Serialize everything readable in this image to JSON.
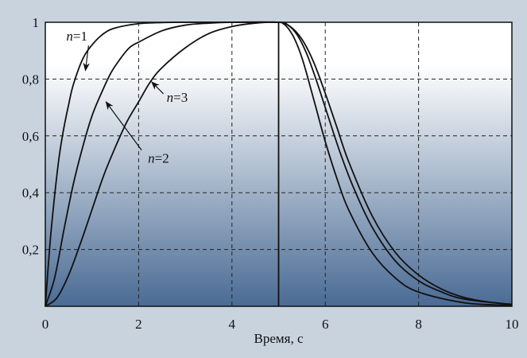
{
  "chart_data": {
    "type": "line",
    "title": "",
    "xlabel": "Время, с",
    "ylabel": "",
    "xlim": [
      0,
      10
    ],
    "ylim": [
      0,
      1
    ],
    "x_ticks": [
      {
        "value": 0,
        "label": "0"
      },
      {
        "value": 2,
        "label": "2"
      },
      {
        "value": 4,
        "label": "4"
      },
      {
        "value": 6,
        "label": "6"
      },
      {
        "value": 8,
        "label": "8"
      },
      {
        "value": 10,
        "label": "10"
      }
    ],
    "y_ticks": [
      {
        "value": 0.2,
        "label": "0,2"
      },
      {
        "value": 0.4,
        "label": "0,4"
      },
      {
        "value": 0.6,
        "label": "0,6"
      },
      {
        "value": 0.8,
        "label": "0,8"
      },
      {
        "value": 1.0,
        "label": "1"
      }
    ],
    "grid": true,
    "vertical_line_x": 5,
    "series": [
      {
        "name": "n=1",
        "x": [
          0,
          0.1,
          0.2,
          0.3,
          0.4,
          0.5,
          0.6,
          0.8,
          1.0,
          1.25,
          1.5,
          2.0,
          2.5,
          3.0,
          4.0,
          5.0,
          5.1,
          5.2,
          5.3,
          5.4,
          5.5,
          5.6,
          5.8,
          6.0,
          6.25,
          6.5,
          7.0,
          7.5,
          8.0,
          9.0,
          10.0
        ],
        "values": [
          0,
          0.22,
          0.39,
          0.53,
          0.63,
          0.71,
          0.78,
          0.87,
          0.92,
          0.96,
          0.98,
          0.995,
          0.999,
          1.0,
          1.0,
          1.0,
          0.995,
          0.98,
          0.955,
          0.92,
          0.875,
          0.82,
          0.7,
          0.58,
          0.45,
          0.34,
          0.19,
          0.1,
          0.05,
          0.012,
          0.003
        ]
      },
      {
        "name": "n=2",
        "x": [
          0,
          0.2,
          0.4,
          0.6,
          0.8,
          1.0,
          1.2,
          1.4,
          1.6,
          1.8,
          2.0,
          2.5,
          3.0,
          3.5,
          4.0,
          5.0,
          5.2,
          5.4,
          5.6,
          5.8,
          6.0,
          6.3,
          6.6,
          7.0,
          7.5,
          8.0,
          8.5,
          9.0,
          10.0
        ],
        "values": [
          0,
          0.1,
          0.27,
          0.43,
          0.56,
          0.67,
          0.75,
          0.82,
          0.87,
          0.91,
          0.93,
          0.97,
          0.99,
          0.997,
          1.0,
          1.0,
          0.99,
          0.955,
          0.89,
          0.8,
          0.7,
          0.55,
          0.42,
          0.28,
          0.16,
          0.09,
          0.05,
          0.025,
          0.006
        ]
      },
      {
        "name": "n=3",
        "x": [
          0,
          0.25,
          0.5,
          0.75,
          1.0,
          1.25,
          1.5,
          1.75,
          2.0,
          2.25,
          2.5,
          3.0,
          3.5,
          4.0,
          4.5,
          5.0,
          5.25,
          5.5,
          5.75,
          6.0,
          6.25,
          6.5,
          7.0,
          7.5,
          8.0,
          8.5,
          9.0,
          9.5,
          10.0
        ],
        "values": [
          0,
          0.03,
          0.11,
          0.22,
          0.34,
          0.46,
          0.56,
          0.65,
          0.72,
          0.79,
          0.84,
          0.91,
          0.96,
          0.985,
          0.997,
          1.0,
          0.985,
          0.94,
          0.86,
          0.75,
          0.63,
          0.51,
          0.32,
          0.19,
          0.11,
          0.06,
          0.03,
          0.015,
          0.007
        ]
      }
    ],
    "annotations": [
      {
        "label": "n=1",
        "var": "n",
        "value": "1",
        "text_x": 0.45,
        "text_y": 0.935,
        "arrow_to_x": 0.86,
        "arrow_to_y": 0.83
      },
      {
        "label": "n=3",
        "var": "n",
        "value": "3",
        "text_x": 2.6,
        "text_y": 0.72,
        "arrow_to_x": 2.28,
        "arrow_to_y": 0.79
      },
      {
        "label": "n=2",
        "var": "n",
        "value": "2",
        "text_x": 2.2,
        "text_y": 0.505,
        "arrow_to_x": 1.3,
        "arrow_to_y": 0.72
      }
    ],
    "colors": {
      "plot_top": "#ffffff",
      "plot_bottom": "#4a6b94",
      "frame": "#c8d3de",
      "line": "#111111"
    }
  }
}
